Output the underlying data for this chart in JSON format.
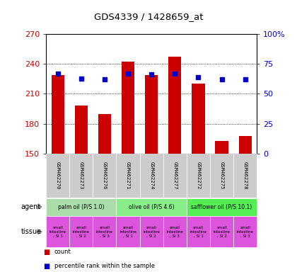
{
  "title": "GDS4339 / 1428659_at",
  "samples": [
    "GSM462270",
    "GSM462273",
    "GSM462276",
    "GSM462271",
    "GSM462274",
    "GSM462277",
    "GSM462272",
    "GSM462275",
    "GSM462278"
  ],
  "counts": [
    229,
    198,
    190,
    242,
    229,
    247,
    220,
    163,
    168
  ],
  "percentiles": [
    67,
    63,
    62,
    67,
    66,
    67,
    64,
    62,
    62
  ],
  "ylim_left": [
    150,
    270
  ],
  "ylim_right": [
    0,
    100
  ],
  "yticks_left": [
    150,
    180,
    210,
    240,
    270
  ],
  "yticks_right": [
    0,
    25,
    50,
    75,
    100
  ],
  "bar_color": "#cc0000",
  "dot_color": "#0000cc",
  "bar_bottom": 150,
  "agent_groups": [
    {
      "label": "palm oil (P/S 1.0)",
      "start": 0,
      "end": 3,
      "color": "#aaddaa"
    },
    {
      "label": "olive oil (P/S 4.6)",
      "start": 3,
      "end": 6,
      "color": "#88ee88"
    },
    {
      "label": "safflower oil (P/S 10.1)",
      "start": 6,
      "end": 9,
      "color": "#55ee55"
    }
  ],
  "tissue_labels": [
    "small\nintestine\n, SI 1",
    "small\nintestine\n, SI 2",
    "small\nintestine\n, SI 3",
    "small\nintestine\n, SI 1",
    "small\nintestine\n, SI 2",
    "small\nintestine\n, SI 3",
    "small\nintestine\n, SI 1",
    "small\nintestine\n, SI 2",
    "small\nintestine\n, SI 3"
  ],
  "tissue_color": "#dd55dd",
  "agent_label": "agent",
  "tissue_label": "tissue",
  "legend_count_color": "#cc0000",
  "legend_percentile_color": "#0000cc",
  "bg_color": "#ffffff",
  "plot_bg_color": "#ffffff",
  "tick_label_color_left": "#cc0000",
  "tick_label_color_right": "#0000cc",
  "xticklabel_bg": "#cccccc",
  "grid_lines": [
    180,
    210,
    240
  ],
  "right_tick_labels": [
    "0",
    "25",
    "50",
    "75",
    "100%"
  ]
}
